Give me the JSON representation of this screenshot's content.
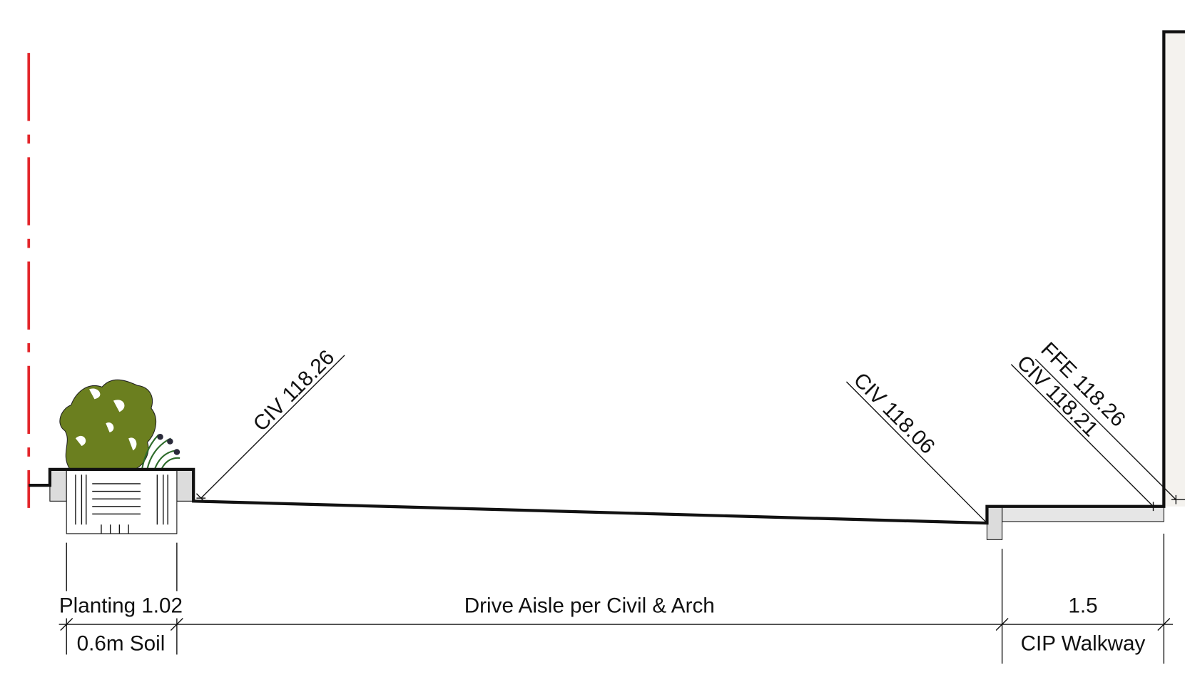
{
  "annotations": [
    "CIV 118.26",
    "CIV 118.06",
    "CIV 118.21",
    "FFE 118.26"
  ],
  "dimensions": [
    {
      "label": "Planting 1.02",
      "sublabel": "0.6m Soil"
    },
    {
      "label": "Drive Aisle per Civil & Arch"
    },
    {
      "label": "1.5",
      "sublabel": "CIP Walkway"
    }
  ]
}
